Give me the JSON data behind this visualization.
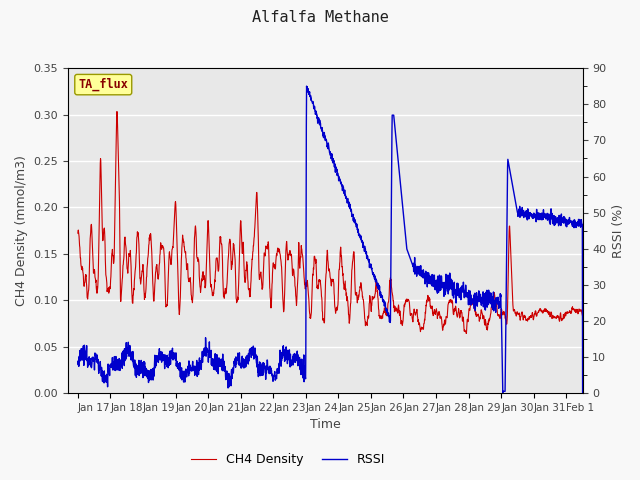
{
  "title": "Alfalfa Methane",
  "xlabel": "Time",
  "ylabel_left": "CH4 Density (mmol/m3)",
  "ylabel_right": "RSSI (%)",
  "ylim_left": [
    0.0,
    0.35
  ],
  "ylim_right": [
    0,
    90
  ],
  "yticks_left": [
    0.0,
    0.05,
    0.1,
    0.15,
    0.2,
    0.25,
    0.3,
    0.35
  ],
  "yticks_right": [
    0,
    10,
    20,
    30,
    40,
    50,
    60,
    70,
    80,
    90
  ],
  "color_ch4": "#cc0000",
  "color_rssi": "#0000cc",
  "fig_bg_color": "#f8f8f8",
  "plot_bg_color": "#e8e8e8",
  "legend_ch4": "CH4 Density",
  "legend_rssi": "RSSI",
  "tag_label": "TA_flux",
  "tag_bg": "#ffff99",
  "tag_border": "#999900",
  "tag_text_color": "#880000",
  "font_color": "#444444",
  "n_days": 15.5,
  "n_points": 2000,
  "tick_labels": [
    "Jan 17",
    "Jan 18",
    "Jan 19",
    "Jan 20",
    "Jan 21",
    "Jan 22",
    "Jan 23",
    "Jan 24",
    "Jan 25",
    "Jan 26",
    "Jan 27",
    "Jan 28",
    "Jan 29",
    "Jan 30",
    "Jan 31",
    "Feb 1"
  ]
}
